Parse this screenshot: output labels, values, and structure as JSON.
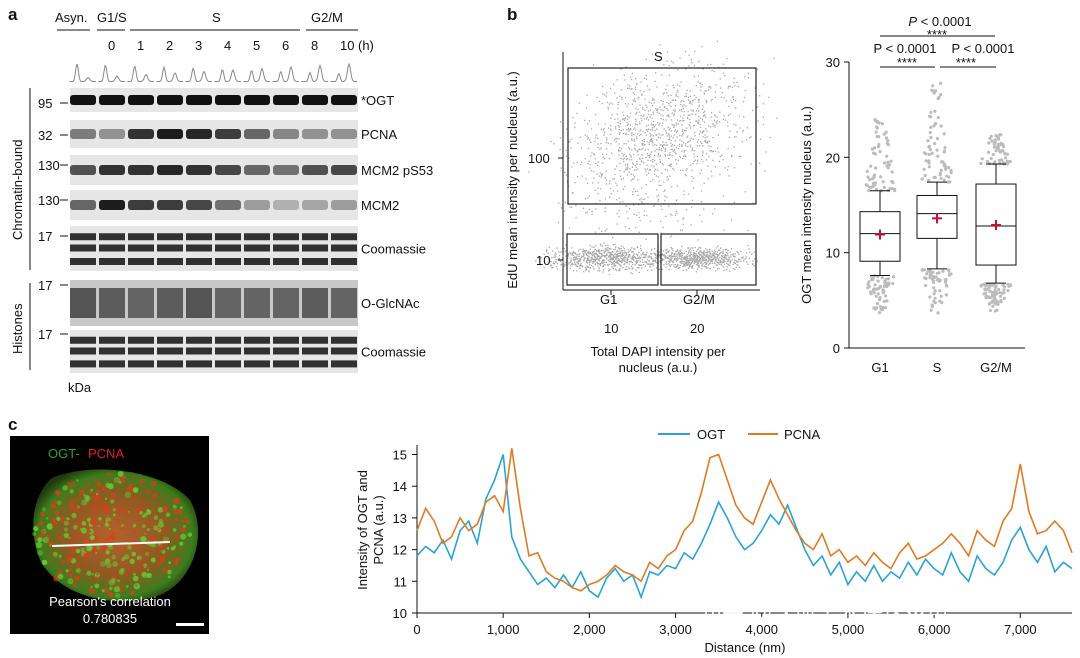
{
  "panels": {
    "a": "a",
    "b": "b",
    "c": "c"
  },
  "panel_a": {
    "group_labels": [
      "Asyn.",
      "G1/S",
      "S",
      "G2/M"
    ],
    "timepoints": [
      "0",
      "1",
      "2",
      "3",
      "4",
      "5",
      "6",
      "8",
      "10"
    ],
    "time_unit": "(h)",
    "blots": [
      {
        "name": "*OGT",
        "kda": "95"
      },
      {
        "name": "PCNA",
        "kda": "32"
      },
      {
        "name": "MCM2 pS53",
        "kda": "130"
      },
      {
        "name": "MCM2",
        "kda": "130"
      },
      {
        "name": "Coomassie",
        "kda": "17"
      },
      {
        "name": "O-GlcNAc",
        "kda": "17"
      },
      {
        "name": "Coomassie",
        "kda": "17"
      }
    ],
    "side_labels": {
      "chromatin": "Chromatin-bound",
      "histones": "Histones"
    },
    "kda_unit": "kDa"
  },
  "panel_b_scatter": {
    "gate_labels": {
      "s": "S",
      "g1": "G1",
      "g2m": "G2/M"
    },
    "ylabel": "EdU mean intensity per nucleus (a.u.)",
    "xlabel_line1": "Total DAPI intensity per",
    "xlabel_line2": "nucleus (a.u.)",
    "yticks": [
      "100",
      "10"
    ],
    "xticks": [
      "10",
      "20"
    ]
  },
  "panel_b_box": {
    "ylabel": "OGT mean intensity nucleus (a.u.)",
    "yticks": [
      "0",
      "10",
      "20",
      "30"
    ],
    "categories": [
      "G1",
      "S",
      "G2/M"
    ],
    "sig": [
      {
        "p": "P < 0.0001",
        "stars": "****"
      },
      {
        "p": "P < 0.0001",
        "stars": "****"
      },
      {
        "p": "P < 0.0001",
        "stars": "****"
      }
    ]
  },
  "chart_data": [
    {
      "type": "box",
      "categories": [
        "G1",
        "S",
        "G2/M"
      ],
      "ylabel": "OGT mean intensity nucleus (a.u.)",
      "ylim": [
        0,
        30
      ],
      "q1": [
        9.1,
        11.5,
        8.7
      ],
      "median": [
        12.0,
        14.1,
        12.8
      ],
      "q3": [
        14.3,
        16.0,
        17.2
      ],
      "whisker_low": [
        7.6,
        8.3,
        6.8
      ],
      "whisker_high": [
        16.5,
        17.4,
        19.3
      ],
      "mean": [
        11.9,
        13.6,
        12.9
      ],
      "outliers_min": [
        3.5,
        3.5,
        3.6
      ],
      "outliers_max": [
        24.0,
        27.8,
        22.4
      ]
    },
    {
      "type": "line",
      "xlabel": "Distance (nm)",
      "ylabel": "Intensity of OGT and PCNA (a.u.)",
      "xlim": [
        0,
        7600
      ],
      "ylim": [
        10,
        15.3
      ],
      "xticks": [
        "0",
        "1,000",
        "2,000",
        "3,000",
        "4,000",
        "5,000",
        "6,000",
        "7,000"
      ],
      "yticks": [
        "10",
        "11",
        "12",
        "13",
        "14",
        "15"
      ],
      "series": [
        {
          "name": "OGT",
          "color": "#29a3d6",
          "x": [
            0,
            100,
            200,
            300,
            400,
            500,
            600,
            700,
            800,
            900,
            1000,
            1100,
            1200,
            1300,
            1400,
            1500,
            1600,
            1700,
            1800,
            1900,
            2000,
            2100,
            2200,
            2300,
            2400,
            2500,
            2600,
            2700,
            2800,
            2900,
            3000,
            3100,
            3200,
            3300,
            3400,
            3500,
            3600,
            3700,
            3800,
            3900,
            4000,
            4100,
            4200,
            4300,
            4400,
            4500,
            4600,
            4700,
            4800,
            4900,
            5000,
            5100,
            5200,
            5300,
            5400,
            5500,
            5600,
            5700,
            5800,
            5900,
            6000,
            6100,
            6200,
            6300,
            6400,
            6500,
            6600,
            6700,
            6800,
            6900,
            7000,
            7100,
            7200,
            7300,
            7400,
            7500,
            7600
          ],
          "y": [
            11.8,
            12.1,
            11.9,
            12.3,
            11.7,
            12.6,
            12.9,
            12.2,
            13.6,
            14.2,
            15.0,
            12.4,
            11.7,
            11.3,
            10.9,
            11.1,
            10.8,
            11.2,
            10.8,
            11.3,
            10.7,
            10.5,
            11.1,
            11.4,
            11.0,
            11.2,
            10.5,
            11.3,
            11.2,
            11.5,
            11.4,
            11.9,
            11.7,
            12.2,
            12.8,
            13.5,
            13.0,
            12.4,
            12.0,
            12.2,
            12.6,
            13.1,
            12.8,
            13.4,
            12.7,
            12.0,
            11.5,
            11.8,
            11.2,
            11.6,
            10.9,
            11.3,
            11.0,
            11.5,
            11.0,
            11.3,
            11.1,
            11.6,
            11.2,
            11.7,
            11.4,
            11.2,
            11.9,
            11.3,
            11.0,
            11.8,
            11.4,
            11.2,
            11.6,
            12.3,
            12.7,
            12.0,
            11.6,
            12.1,
            11.3,
            11.6,
            11.4
          ]
        },
        {
          "name": "PCNA",
          "color": "#e07b25",
          "x": [
            0,
            100,
            200,
            300,
            400,
            500,
            600,
            700,
            800,
            900,
            1000,
            1100,
            1200,
            1300,
            1400,
            1500,
            1600,
            1700,
            1800,
            1900,
            2000,
            2100,
            2200,
            2300,
            2400,
            2500,
            2600,
            2700,
            2800,
            2900,
            3000,
            3100,
            3200,
            3300,
            3400,
            3500,
            3600,
            3700,
            3800,
            3900,
            4000,
            4100,
            4200,
            4300,
            4400,
            4500,
            4600,
            4700,
            4800,
            4900,
            5000,
            5100,
            5200,
            5300,
            5400,
            5500,
            5600,
            5700,
            5800,
            5900,
            6000,
            6100,
            6200,
            6300,
            6400,
            6500,
            6600,
            6700,
            6800,
            6900,
            7000,
            7100,
            7200,
            7300,
            7400,
            7500,
            7600
          ],
          "y": [
            12.6,
            13.3,
            12.9,
            12.2,
            12.4,
            13.0,
            12.6,
            12.8,
            13.5,
            13.7,
            13.2,
            15.2,
            13.3,
            11.8,
            11.9,
            11.3,
            11.1,
            11.0,
            10.8,
            10.7,
            10.9,
            11.0,
            11.2,
            11.5,
            11.3,
            11.2,
            11.0,
            11.6,
            11.4,
            11.8,
            12.0,
            12.6,
            12.9,
            13.8,
            14.9,
            15.0,
            14.2,
            13.4,
            13.0,
            12.8,
            13.5,
            14.2,
            13.6,
            13.1,
            12.6,
            12.2,
            12.0,
            12.5,
            11.8,
            12.0,
            11.6,
            11.8,
            11.5,
            11.9,
            11.6,
            11.4,
            11.9,
            12.2,
            11.7,
            11.8,
            12.0,
            12.2,
            12.5,
            12.2,
            11.8,
            12.6,
            12.3,
            12.1,
            12.9,
            13.3,
            14.7,
            13.2,
            12.5,
            12.6,
            12.9,
            12.6,
            11.9
          ]
        }
      ]
    }
  ],
  "panel_c": {
    "image_label_ogt": "OGT-",
    "image_label_pcna": "PCNA",
    "pearson_label": "Pearson's correlation",
    "pearson_value": "0.780835",
    "legend_ogt": "OGT",
    "legend_pcna": "PCNA",
    "xlabel": "Distance (nm)",
    "ylabel_line1": "Intensity of OGT and",
    "ylabel_line2": "PCNA (a.u.)",
    "watermark": "知乎 @沃斯学术快速录用"
  }
}
